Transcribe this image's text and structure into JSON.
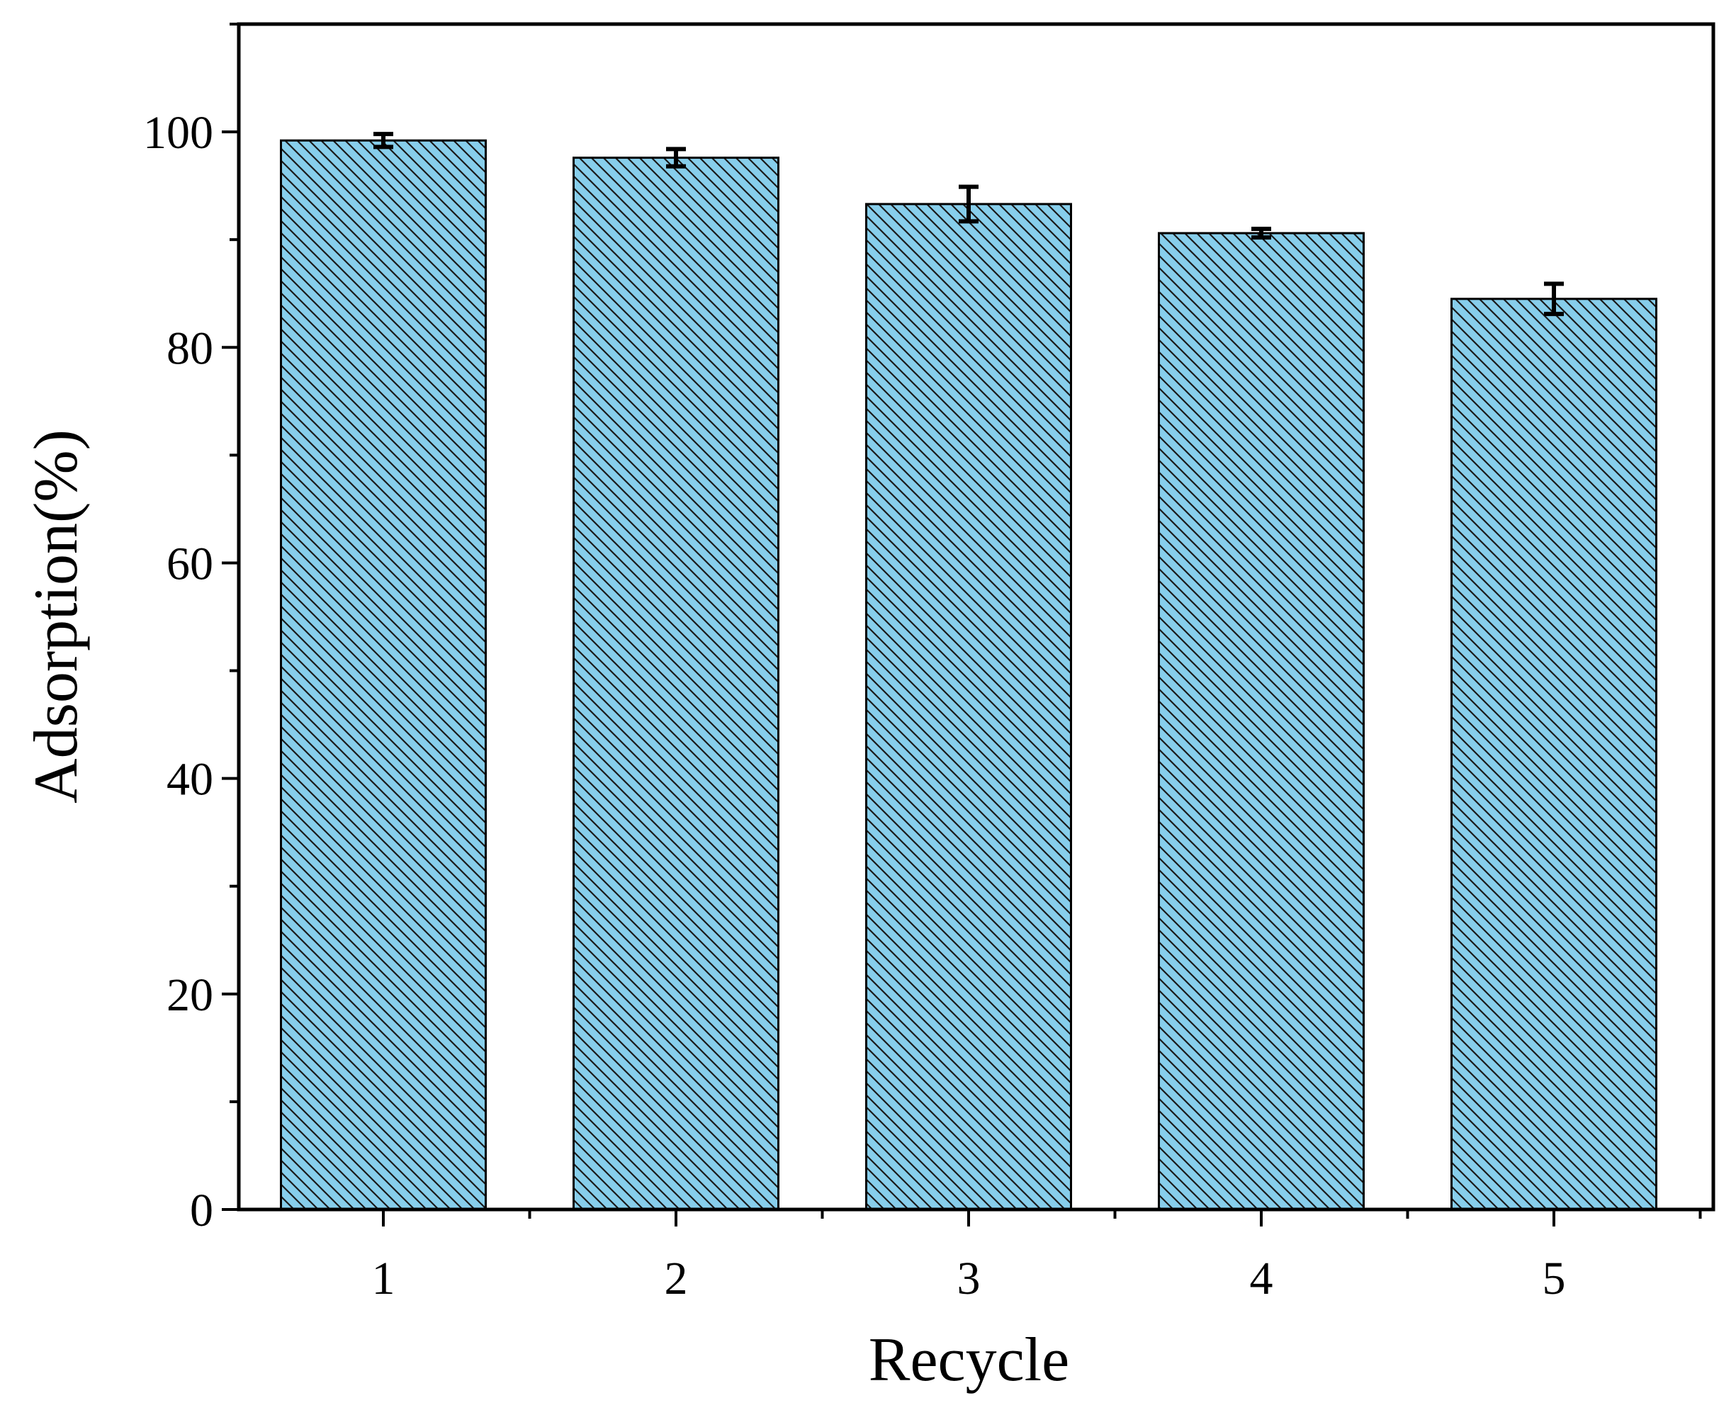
{
  "chart_data": {
    "type": "bar",
    "categories": [
      "1",
      "2",
      "3",
      "4",
      "5"
    ],
    "values": [
      99.2,
      97.6,
      93.3,
      90.6,
      84.5
    ],
    "errors": [
      0.6,
      0.8,
      1.6,
      0.4,
      1.4
    ],
    "xlabel": "Recycle",
    "ylabel": "Adsorption(%)",
    "ylim": [
      0,
      110
    ],
    "yticks": [
      0,
      20,
      40,
      60,
      80,
      100
    ],
    "ytick_labels": [
      "0",
      "20",
      "40",
      "60",
      "80",
      "100"
    ],
    "y_minor_step": 10,
    "bar_color": "#87CEEB",
    "hatch": "diagonal-down",
    "grid": false,
    "legend": "none"
  }
}
